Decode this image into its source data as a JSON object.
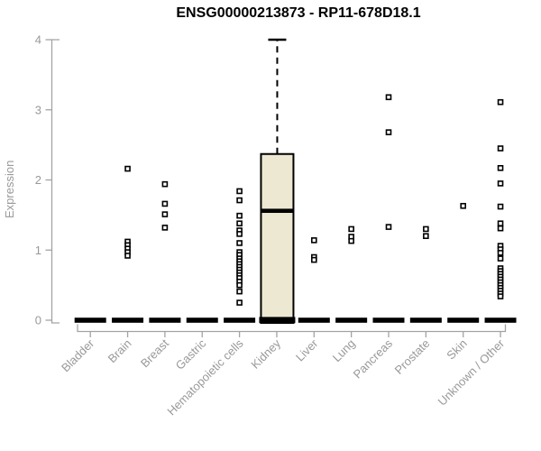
{
  "chart_data": {
    "type": "boxplot",
    "title": "ENSG00000213873 - RP11-678D18.1",
    "ylabel": "Expression",
    "xlabel": "",
    "ylim": [
      0,
      4
    ],
    "yticks": [
      0,
      1,
      2,
      3,
      4
    ],
    "grid": false,
    "legend": "none",
    "categories": [
      "Bladder",
      "Brain",
      "Breast",
      "Gastric",
      "Hematopoietic cells",
      "Kidney",
      "Liver",
      "Lung",
      "Pancreas",
      "Prostate",
      "Skin",
      "Unknown / Other"
    ],
    "groups": [
      {
        "name": "Bladder",
        "box": {
          "whisker_low": 0,
          "q1": 0,
          "median": 0,
          "q3": 0.02,
          "whisker_high": 0.02
        },
        "outliers": []
      },
      {
        "name": "Brain",
        "box": {
          "whisker_low": 0,
          "q1": 0,
          "median": 0,
          "q3": 0.02,
          "whisker_high": 0.02
        },
        "outliers": [
          2.16,
          1.12,
          1.07,
          1.02,
          0.97,
          0.92
        ]
      },
      {
        "name": "Breast",
        "box": {
          "whisker_low": 0,
          "q1": 0,
          "median": 0,
          "q3": 0.02,
          "whisker_high": 0.02
        },
        "outliers": [
          1.94,
          1.66,
          1.51,
          1.32
        ]
      },
      {
        "name": "Gastric",
        "box": {
          "whisker_low": 0,
          "q1": 0,
          "median": 0,
          "q3": 0.02,
          "whisker_high": 0.02
        },
        "outliers": []
      },
      {
        "name": "Hematopoietic cells",
        "box": {
          "whisker_low": 0,
          "q1": 0,
          "median": 0,
          "q3": 0.02,
          "whisker_high": 0.02
        },
        "outliers": [
          1.84,
          1.71,
          1.49,
          1.38,
          1.28,
          1.23,
          1.1,
          0.97,
          0.93,
          0.88,
          0.84,
          0.8,
          0.76,
          0.72,
          0.68,
          0.64,
          0.6,
          0.55,
          0.5,
          0.41,
          0.25
        ]
      },
      {
        "name": "Kidney",
        "box": {
          "whisker_low": 0,
          "q1": 0.04,
          "median": 1.56,
          "q3": 2.37,
          "whisker_high": 4.0
        },
        "outliers": []
      },
      {
        "name": "Liver",
        "box": {
          "whisker_low": 0,
          "q1": 0,
          "median": 0,
          "q3": 0.02,
          "whisker_high": 0.02
        },
        "outliers": [
          1.14,
          0.9,
          0.86
        ]
      },
      {
        "name": "Lung",
        "box": {
          "whisker_low": 0,
          "q1": 0,
          "median": 0,
          "q3": 0.02,
          "whisker_high": 0.02
        },
        "outliers": [
          1.3,
          1.19,
          1.13
        ]
      },
      {
        "name": "Pancreas",
        "box": {
          "whisker_low": 0,
          "q1": 0,
          "median": 0,
          "q3": 0.02,
          "whisker_high": 0.02
        },
        "outliers": [
          3.18,
          2.68,
          1.33
        ]
      },
      {
        "name": "Prostate",
        "box": {
          "whisker_low": 0,
          "q1": 0,
          "median": 0,
          "q3": 0.02,
          "whisker_high": 0.02
        },
        "outliers": [
          1.3,
          1.2
        ]
      },
      {
        "name": "Skin",
        "box": {
          "whisker_low": 0,
          "q1": 0,
          "median": 0,
          "q3": 0.02,
          "whisker_high": 0.02
        },
        "outliers": [
          1.63
        ]
      },
      {
        "name": "Unknown / Other",
        "box": {
          "whisker_low": 0,
          "q1": 0,
          "median": 0,
          "q3": 0.02,
          "whisker_high": 0.02
        },
        "outliers": [
          3.11,
          2.45,
          2.17,
          1.95,
          1.62,
          1.38,
          1.31,
          1.06,
          1.01,
          0.96,
          0.88,
          0.74,
          0.7,
          0.66,
          0.62,
          0.58,
          0.54,
          0.5,
          0.46,
          0.42,
          0.38,
          0.34
        ]
      }
    ],
    "colors": {
      "box_fill": "#ede8d1",
      "mark": "#000000",
      "axis_line": "#a3a3a3",
      "tick_label": "#999999",
      "title": "#000000"
    }
  }
}
